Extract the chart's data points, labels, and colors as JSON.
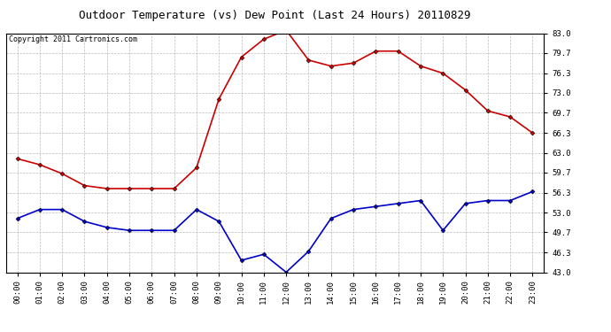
{
  "title": "Outdoor Temperature (vs) Dew Point (Last 24 Hours) 20110829",
  "copyright_text": "Copyright 2011 Cartronics.com",
  "x_labels": [
    "00:00",
    "01:00",
    "02:00",
    "03:00",
    "04:00",
    "05:00",
    "06:00",
    "07:00",
    "08:00",
    "09:00",
    "10:00",
    "11:00",
    "12:00",
    "13:00",
    "14:00",
    "15:00",
    "16:00",
    "17:00",
    "18:00",
    "19:00",
    "20:00",
    "21:00",
    "22:00",
    "23:00"
  ],
  "temp_data": [
    62.0,
    61.0,
    59.5,
    57.5,
    57.0,
    57.0,
    57.0,
    57.0,
    60.5,
    72.0,
    79.0,
    82.0,
    83.5,
    78.5,
    77.5,
    78.0,
    80.0,
    80.0,
    77.5,
    76.3,
    73.5,
    70.0,
    69.0,
    66.3
  ],
  "dew_data": [
    52.0,
    53.5,
    53.5,
    51.5,
    50.5,
    50.0,
    50.0,
    50.0,
    53.5,
    51.5,
    45.0,
    46.0,
    43.0,
    46.5,
    52.0,
    53.5,
    54.0,
    54.5,
    55.0,
    50.0,
    54.5,
    55.0,
    55.0,
    56.5
  ],
  "temp_color": "#cc0000",
  "dew_color": "#0000cc",
  "bg_color": "#ffffff",
  "plot_bg_color": "#ffffff",
  "grid_color": "#bbbbbb",
  "y_ticks": [
    43.0,
    46.3,
    49.7,
    53.0,
    56.3,
    59.7,
    63.0,
    66.3,
    69.7,
    73.0,
    76.3,
    79.7,
    83.0
  ],
  "ylim": [
    43.0,
    83.0
  ],
  "marker": "D",
  "marker_size": 2.5,
  "linewidth": 1.2,
  "title_fontsize": 9,
  "copyright_fontsize": 6,
  "tick_fontsize": 6.5
}
